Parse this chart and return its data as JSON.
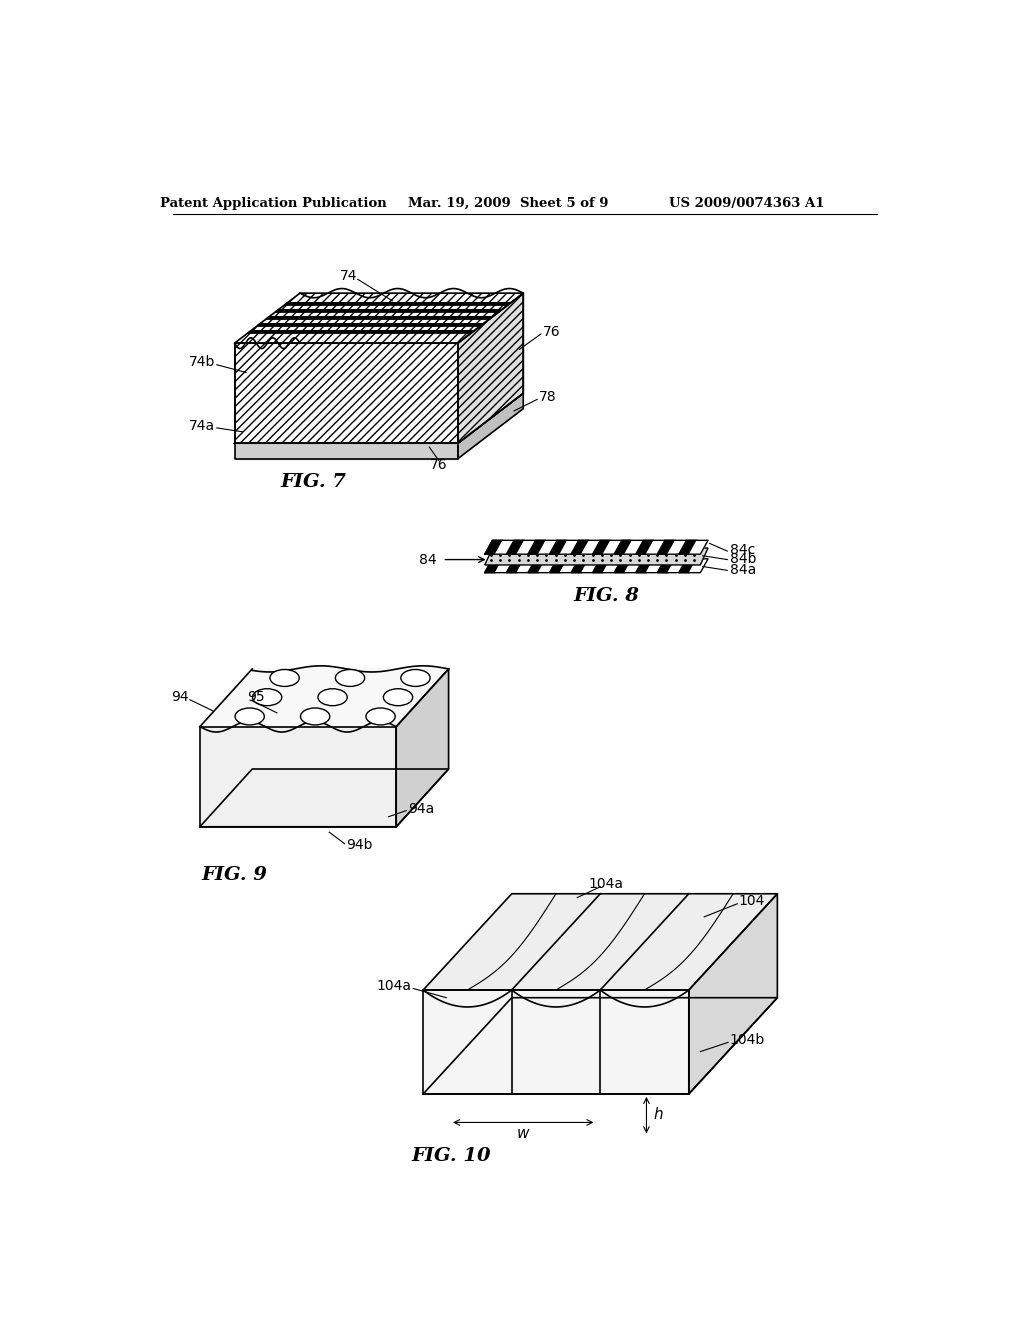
{
  "header_left": "Patent Application Publication",
  "header_mid": "Mar. 19, 2009  Sheet 5 of 9",
  "header_right": "US 2009/0074363 A1",
  "fig7_label": "FIG. 7",
  "fig8_label": "FIG. 8",
  "fig9_label": "FIG. 9",
  "fig10_label": "FIG. 10",
  "bg_color": "#ffffff",
  "line_color": "#000000"
}
